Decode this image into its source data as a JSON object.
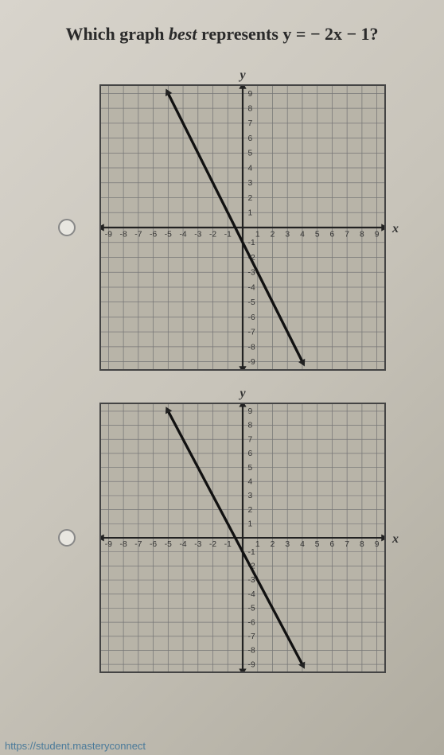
{
  "question": {
    "prefix": "Which graph ",
    "italic": "best",
    "suffix": " represents y = − 2x − 1?"
  },
  "footer_link": "https://student.masteryconnect",
  "graphs": [
    {
      "type": "line-chart",
      "xlim": [
        -9,
        9
      ],
      "ylim": [
        -9,
        9
      ],
      "xtick_step": 1,
      "ytick_step": 1,
      "x_label": "x",
      "y_label": "y",
      "x_axis_labels": [
        "-9",
        "-8",
        "-7",
        "-6",
        "-5",
        "-4",
        "-3",
        "-2",
        "-1",
        "1",
        "2",
        "3",
        "4",
        "5",
        "6",
        "7",
        "8",
        "9"
      ],
      "y_axis_labels": [
        "9",
        "8",
        "7",
        "6",
        "5",
        "4",
        "3",
        "2",
        "1",
        "-1",
        "-2",
        "-3",
        "-4",
        "-5",
        "-6",
        "-7",
        "-8",
        "-9"
      ],
      "line": {
        "slope": -2,
        "intercept": -1,
        "x1": -5,
        "y1": 9,
        "x2": 4,
        "y2": -9
      },
      "grid_color": "#777",
      "axis_color": "#222",
      "line_color": "#111",
      "line_width": 3,
      "background_color": "#b8b4a8",
      "label_fontsize": 9
    },
    {
      "type": "line-chart",
      "xlim": [
        -9,
        9
      ],
      "ylim": [
        -9,
        9
      ],
      "xtick_step": 1,
      "ytick_step": 1,
      "x_label": "x",
      "y_label": "y",
      "x_axis_labels": [
        "-9",
        "-8",
        "-7",
        "-6",
        "-5",
        "-4",
        "-3",
        "-2",
        "-1",
        "1",
        "2",
        "3",
        "4",
        "5",
        "6",
        "7",
        "8",
        "9"
      ],
      "y_axis_labels": [
        "9",
        "8",
        "7",
        "6",
        "5",
        "4",
        "3",
        "2",
        "1",
        "-1",
        "-2",
        "-3",
        "-4",
        "-5",
        "-6",
        "-7",
        "-8",
        "-9"
      ],
      "line": {
        "slope": -2,
        "intercept": -1,
        "x1": -5,
        "y1": 9,
        "x2": 4,
        "y2": -9
      },
      "grid_color": "#777",
      "axis_color": "#222",
      "line_color": "#111",
      "line_width": 3,
      "background_color": "#b8b4a8",
      "label_fontsize": 9
    }
  ]
}
